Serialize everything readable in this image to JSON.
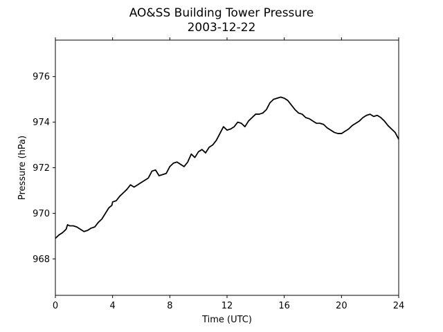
{
  "chart_data": {
    "type": "line",
    "title": "AO&SS Building Tower Pressure",
    "subtitle": "2003-12-22",
    "xlabel": "Time (UTC)",
    "ylabel": "Pressure (hPa)",
    "xlim": [
      0,
      24
    ],
    "ylim": [
      966.4,
      977.6
    ],
    "xticks": [
      0,
      4,
      8,
      12,
      16,
      20,
      24
    ],
    "xtick_labels": [
      "0",
      "4",
      "8",
      "12",
      "16",
      "20",
      "24"
    ],
    "yticks": [
      968,
      970,
      972,
      974,
      976
    ],
    "ytick_labels": [
      "968",
      "970",
      "972",
      "974",
      "976"
    ],
    "grid": false,
    "legend": "none",
    "line_color": "#000000",
    "series": [
      {
        "x": [
          0.0,
          0.25,
          0.5,
          0.75,
          0.85,
          1.0,
          1.25,
          1.5,
          1.75,
          2.0,
          2.25,
          2.5,
          2.75,
          3.0,
          3.25,
          3.5,
          3.75,
          3.95,
          4.0,
          4.25,
          4.5,
          4.75,
          5.0,
          5.25,
          5.5,
          5.75,
          6.0,
          6.25,
          6.5,
          6.75,
          7.0,
          7.25,
          7.5,
          7.75,
          8.0,
          8.25,
          8.5,
          8.75,
          9.0,
          9.25,
          9.5,
          9.75,
          10.0,
          10.25,
          10.5,
          10.75,
          11.0,
          11.25,
          11.5,
          11.75,
          12.0,
          12.25,
          12.5,
          12.75,
          13.0,
          13.25,
          13.5,
          13.75,
          14.0,
          14.25,
          14.5,
          14.75,
          15.0,
          15.25,
          15.5,
          15.75,
          16.0,
          16.25,
          16.5,
          16.75,
          17.0,
          17.25,
          17.5,
          17.75,
          18.0,
          18.25,
          18.5,
          18.75,
          19.0,
          19.25,
          19.5,
          19.75,
          20.0,
          20.25,
          20.5,
          20.75,
          21.0,
          21.25,
          21.5,
          21.75,
          22.0,
          22.25,
          22.5,
          22.75,
          23.0,
          23.25,
          23.5,
          23.75,
          24.0
        ],
        "y": [
          968.9,
          969.05,
          969.15,
          969.3,
          969.5,
          969.45,
          969.45,
          969.4,
          969.3,
          969.2,
          969.25,
          969.35,
          969.4,
          969.6,
          969.75,
          970.0,
          970.25,
          970.35,
          970.5,
          970.55,
          970.75,
          970.9,
          971.05,
          971.25,
          971.15,
          971.25,
          971.35,
          971.45,
          971.55,
          971.85,
          971.9,
          971.65,
          971.7,
          971.75,
          972.05,
          972.2,
          972.25,
          972.15,
          972.05,
          972.25,
          972.6,
          972.45,
          972.7,
          972.8,
          972.65,
          972.9,
          973.0,
          973.2,
          973.5,
          973.8,
          973.65,
          973.7,
          973.8,
          974.0,
          973.95,
          973.8,
          974.05,
          974.2,
          974.35,
          974.35,
          974.4,
          974.55,
          974.85,
          975.0,
          975.05,
          975.1,
          975.05,
          974.95,
          974.75,
          974.55,
          974.4,
          974.35,
          974.2,
          974.15,
          974.05,
          973.95,
          973.95,
          973.9,
          973.75,
          973.65,
          973.55,
          973.5,
          973.5,
          973.6,
          973.7,
          973.85,
          973.95,
          974.05,
          974.2,
          974.3,
          974.35,
          974.25,
          974.3,
          974.2,
          974.05,
          973.85,
          973.7,
          973.55,
          973.25
        ]
      }
    ]
  }
}
